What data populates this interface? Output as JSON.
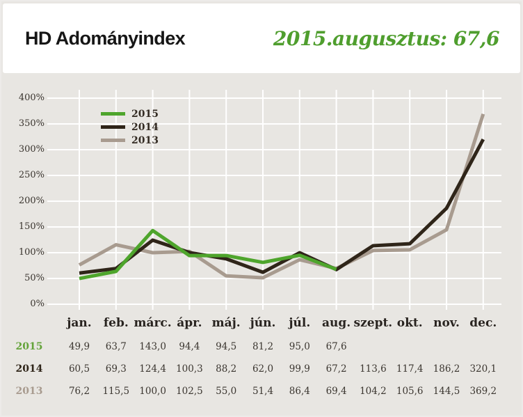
{
  "header": {
    "title": "HD Adományindex",
    "subtitle": "2015.augusztus: 67,6"
  },
  "colors": {
    "page_bg": "#e8e6e2",
    "card_bg": "#ffffff",
    "grid": "#ffffff",
    "title_text": "#161616",
    "accent_green": "#4f9e2e",
    "axis_text": "#38332d",
    "table_text": "#3a352f"
  },
  "chart_data": {
    "type": "line",
    "title": "HD Adományindex",
    "categories": [
      "jan.",
      "feb.",
      "márc.",
      "ápr.",
      "máj.",
      "jún.",
      "júl.",
      "aug.",
      "szept.",
      "okt.",
      "nov.",
      "dec."
    ],
    "y_ticks": [
      "400%",
      "350%",
      "300%",
      "250%",
      "200%",
      "150%",
      "100%",
      "50%",
      "0%"
    ],
    "ylim": [
      0,
      400
    ],
    "grid": true,
    "legend_position": "top-left",
    "series": [
      {
        "name": "2015",
        "color": "#4ea52c",
        "label_color": "#63a339",
        "values": [
          49.9,
          63.7,
          143.0,
          94.4,
          94.5,
          81.2,
          95.0,
          67.6,
          null,
          null,
          null,
          null
        ]
      },
      {
        "name": "2014",
        "color": "#2f2519",
        "label_color": "#2f2519",
        "values": [
          60.5,
          69.3,
          124.4,
          100.3,
          88.2,
          62.0,
          99.9,
          67.2,
          113.6,
          117.4,
          186.2,
          320.1
        ]
      },
      {
        "name": "2013",
        "color": "#a89b8f",
        "label_color": "#a89b8f",
        "values": [
          76.2,
          115.5,
          100.0,
          102.5,
          55.0,
          51.4,
          86.4,
          69.4,
          104.2,
          105.6,
          144.5,
          369.2
        ]
      }
    ]
  }
}
